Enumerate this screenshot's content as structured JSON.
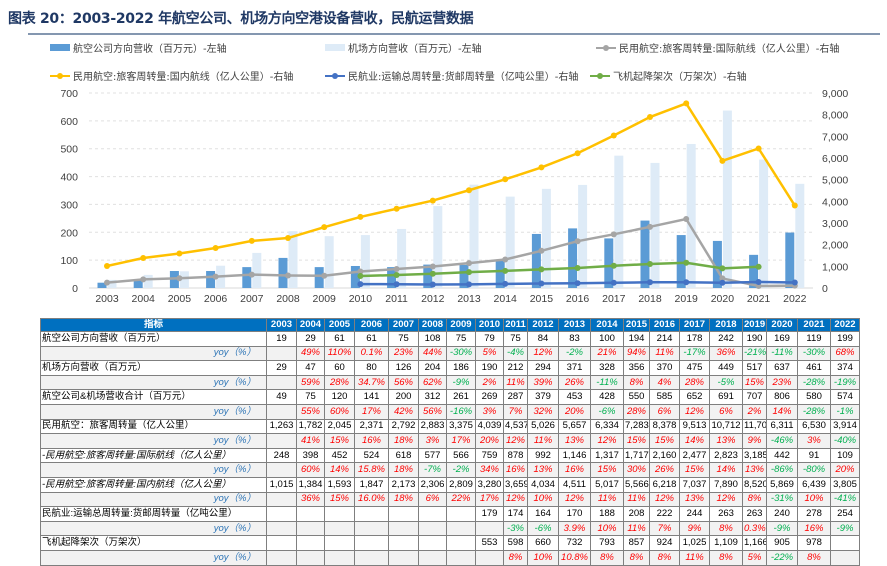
{
  "title": "图表 20：2003-2022 年航空公司、机场方向空港设备营收，民航运营数据",
  "colors": {
    "airline_bar": "#5b9bd5",
    "airport_bar": "#deebf7",
    "intl": "#a5a5a5",
    "domestic": "#ffc000",
    "cargo": "#4472c4",
    "flights": "#70ad47",
    "header": "#0070c0",
    "positive": "#ff0000",
    "negative": "#00b050"
  },
  "chart_data": {
    "type": "bar",
    "categories": [
      "2003",
      "2004",
      "2005",
      "2006",
      "2007",
      "2008",
      "2009",
      "2010",
      "2011",
      "2012",
      "2013",
      "2014",
      "2015",
      "2016",
      "2017",
      "2018",
      "2019",
      "2020",
      "2021",
      "2022"
    ],
    "left_axis": {
      "ylim": [
        0,
        700
      ],
      "ticks": [
        "0",
        "100",
        "200",
        "300",
        "400",
        "500",
        "600",
        "700"
      ]
    },
    "right_axis": {
      "ylim": [
        0,
        9000
      ],
      "ticks": [
        "0",
        "1,000",
        "2,000",
        "3,000",
        "4,000",
        "5,000",
        "6,000",
        "7,000",
        "8,000",
        "9,000"
      ]
    },
    "legend_placement": "top",
    "grid": true,
    "series": [
      {
        "name": "航空公司方向营收（百万元）-左轴",
        "kind": "bar",
        "axis": "left",
        "values": [
          19,
          29,
          61,
          61,
          75,
          108,
          75,
          79,
          75,
          84,
          83,
          100,
          194,
          214,
          178,
          242,
          190,
          169,
          119,
          199
        ]
      },
      {
        "name": "机场方向营收（百万元）-左轴",
        "kind": "bar",
        "axis": "left",
        "values": [
          29,
          47,
          60,
          80,
          126,
          204,
          186,
          190,
          212,
          294,
          371,
          328,
          356,
          370,
          475,
          449,
          517,
          637,
          461,
          374
        ]
      },
      {
        "name": "民用航空:旅客周转量:国际航线（亿人公里）-右轴",
        "kind": "line",
        "axis": "right",
        "values": [
          248,
          398,
          452,
          524,
          618,
          577,
          566,
          759,
          878,
          992,
          1146,
          1317,
          1717,
          2160,
          2477,
          2823,
          3185,
          442,
          91,
          109
        ]
      },
      {
        "name": "民用航空:旅客周转量:国内航线（亿人公里）-右轴",
        "kind": "line",
        "axis": "right",
        "values": [
          1015,
          1384,
          1593,
          1847,
          2173,
          2306,
          2809,
          3280,
          3659,
          4034,
          4511,
          5017,
          5566,
          6218,
          7037,
          7890,
          8520,
          5869,
          6439,
          3805
        ]
      },
      {
        "name": "民航业:运输总周转量:货邮周转量（亿吨公里）-右轴",
        "kind": "line",
        "axis": "right",
        "values": [
          null,
          null,
          null,
          null,
          null,
          null,
          null,
          179,
          174,
          164,
          170,
          188,
          208,
          222,
          244,
          263,
          263,
          240,
          278,
          254
        ]
      },
      {
        "name": "飞机起降架次（万架次）-右轴",
        "kind": "line",
        "axis": "right",
        "values": [
          null,
          null,
          null,
          null,
          null,
          null,
          null,
          553,
          598,
          660,
          732,
          793,
          857,
          924,
          1025,
          1109,
          1166,
          905,
          978,
          null
        ]
      }
    ]
  },
  "table": {
    "header_label": "指标",
    "years": [
      "2003",
      "2004",
      "2005",
      "2006",
      "2007",
      "2008",
      "2009",
      "2010",
      "2011",
      "2012",
      "2013",
      "2014",
      "2015",
      "2016",
      "2017",
      "2018",
      "2019",
      "2020",
      "2021",
      "2022"
    ],
    "rows": [
      {
        "label": "航空公司方向营收（百万元）",
        "type": "main",
        "values": [
          "19",
          "29",
          "61",
          "61",
          "75",
          "108",
          "75",
          "79",
          "75",
          "84",
          "83",
          "100",
          "194",
          "214",
          "178",
          "242",
          "190",
          "169",
          "119",
          "199"
        ]
      },
      {
        "label": "yoy（%）",
        "type": "yoy",
        "values": [
          "",
          "49%",
          "110%",
          "0.1%",
          "23%",
          "44%",
          "-30%",
          "5%",
          "-4%",
          "12%",
          "-2%",
          "21%",
          "94%",
          "11%",
          "-17%",
          "36%",
          "-21%",
          "-11%",
          "-30%",
          "68%"
        ]
      },
      {
        "label": "机场方向营收（百万元）",
        "type": "main",
        "values": [
          "29",
          "47",
          "60",
          "80",
          "126",
          "204",
          "186",
          "190",
          "212",
          "294",
          "371",
          "328",
          "356",
          "370",
          "475",
          "449",
          "517",
          "637",
          "461",
          "374"
        ]
      },
      {
        "label": "yoy（%）",
        "type": "yoy",
        "values": [
          "",
          "59%",
          "28%",
          "34.7%",
          "56%",
          "62%",
          "-9%",
          "2%",
          "11%",
          "39%",
          "26%",
          "-11%",
          "8%",
          "4%",
          "28%",
          "-5%",
          "15%",
          "23%",
          "-28%",
          "-19%"
        ]
      },
      {
        "label": "航空公司&机场营收合计（百万元）",
        "type": "main",
        "values": [
          "49",
          "75",
          "120",
          "141",
          "200",
          "312",
          "261",
          "269",
          "287",
          "379",
          "453",
          "428",
          "550",
          "585",
          "652",
          "691",
          "707",
          "806",
          "580",
          "574"
        ]
      },
      {
        "label": "yoy（%）",
        "type": "yoy",
        "values": [
          "",
          "55%",
          "60%",
          "17%",
          "42%",
          "56%",
          "-16%",
          "3%",
          "7%",
          "32%",
          "20%",
          "-6%",
          "28%",
          "6%",
          "12%",
          "6%",
          "2%",
          "14%",
          "-28%",
          "-1%"
        ]
      },
      {
        "label": "民用航空：旅客周转量（亿人公里）",
        "type": "main",
        "values": [
          "1,263",
          "1,782",
          "2,045",
          "2,371",
          "2,792",
          "2,883",
          "3,375",
          "4,039",
          "4,537",
          "5,026",
          "5,657",
          "6,334",
          "7,283",
          "8,378",
          "9,513",
          "10,712",
          "11,705",
          "6,311",
          "6,530",
          "3,914"
        ]
      },
      {
        "label": "yoy（%）",
        "type": "yoy",
        "values": [
          "",
          "41%",
          "15%",
          "16%",
          "18%",
          "3%",
          "17%",
          "20%",
          "12%",
          "11%",
          "13%",
          "12%",
          "15%",
          "15%",
          "14%",
          "13%",
          "9%",
          "-46%",
          "3%",
          "-40%"
        ]
      },
      {
        "label": "-民用航空:旅客周转量:国际航线（亿人公里）",
        "type": "sub",
        "values": [
          "248",
          "398",
          "452",
          "524",
          "618",
          "577",
          "566",
          "759",
          "878",
          "992",
          "1,146",
          "1,317",
          "1,717",
          "2,160",
          "2,477",
          "2,823",
          "3,185",
          "442",
          "91",
          "109"
        ]
      },
      {
        "label": "yoy（%）",
        "type": "yoy",
        "values": [
          "",
          "60%",
          "14%",
          "15.8%",
          "18%",
          "-7%",
          "-2%",
          "34%",
          "16%",
          "13%",
          "16%",
          "15%",
          "30%",
          "26%",
          "15%",
          "14%",
          "13%",
          "-86%",
          "-80%",
          "20%"
        ]
      },
      {
        "label": "-民用航空:旅客周转量:国内航线（亿人公里）",
        "type": "sub",
        "values": [
          "1,015",
          "1,384",
          "1,593",
          "1,847",
          "2,173",
          "2,306",
          "2,809",
          "3,280",
          "3,659",
          "4,034",
          "4,511",
          "5,017",
          "5,566",
          "6,218",
          "7,037",
          "7,890",
          "8,520",
          "5,869",
          "6,439",
          "3,805"
        ]
      },
      {
        "label": "yoy（%）",
        "type": "yoy",
        "values": [
          "",
          "36%",
          "15%",
          "16.0%",
          "18%",
          "6%",
          "22%",
          "17%",
          "12%",
          "10%",
          "12%",
          "11%",
          "11%",
          "12%",
          "13%",
          "12%",
          "8%",
          "-31%",
          "10%",
          "-41%"
        ]
      },
      {
        "label": "民航业:运输总周转量:货邮周转量（亿吨公里）",
        "type": "main",
        "values": [
          "",
          "",
          "",
          "",
          "",
          "",
          "",
          "179",
          "174",
          "164",
          "170",
          "188",
          "208",
          "222",
          "244",
          "263",
          "263",
          "240",
          "278",
          "254"
        ]
      },
      {
        "label": "yoy（%）",
        "type": "yoy",
        "values": [
          "",
          "",
          "",
          "",
          "",
          "",
          "",
          "",
          "-3%",
          "-6%",
          "3.9%",
          "10%",
          "11%",
          "7%",
          "9%",
          "8%",
          "0.3%",
          "-9%",
          "16%",
          "-9%"
        ]
      },
      {
        "label": "飞机起降架次（万架次）",
        "type": "main",
        "values": [
          "",
          "",
          "",
          "",
          "",
          "",
          "",
          "553",
          "598",
          "660",
          "732",
          "793",
          "857",
          "924",
          "1,025",
          "1,109",
          "1,166",
          "905",
          "978",
          ""
        ]
      },
      {
        "label": "yoy（%）",
        "type": "yoy",
        "values": [
          "",
          "",
          "",
          "",
          "",
          "",
          "",
          "",
          "8%",
          "10%",
          "10.8%",
          "8%",
          "8%",
          "8%",
          "11%",
          "8%",
          "5%",
          "-22%",
          "8%",
          ""
        ]
      }
    ]
  }
}
